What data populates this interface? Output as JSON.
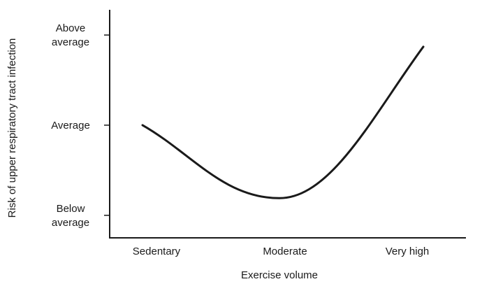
{
  "chart_data": {
    "type": "line",
    "title": "",
    "xlabel": "Exercise volume",
    "ylabel": "Risk of upper respiratory tract infection",
    "categories": [
      "Sedentary",
      "Moderate",
      "Very high"
    ],
    "y_ticks": [
      {
        "value": 0,
        "lines": [
          "Below",
          "average"
        ]
      },
      {
        "value": 1,
        "lines": [
          "Average"
        ]
      },
      {
        "value": 2,
        "lines": [
          "Above",
          "average"
        ]
      }
    ],
    "ylim": [
      -0.25,
      2.28
    ],
    "series": [
      {
        "color": "#1a1a1a",
        "points": [
          {
            "x": "Sedentary",
            "y": 1.0
          },
          {
            "x": "Moderate",
            "y": 0.19
          },
          {
            "x": "Very high",
            "y": 1.87
          }
        ]
      }
    ],
    "grid": false,
    "legend": "none"
  }
}
